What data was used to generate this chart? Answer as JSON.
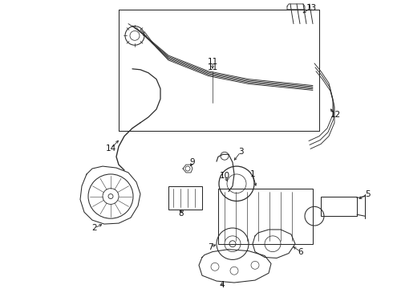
{
  "bg_color": "#ffffff",
  "line_color": "#2a2a2a",
  "text_color": "#111111",
  "figsize": [
    4.9,
    3.6
  ],
  "dpi": 100,
  "label_fs": 7.5,
  "lw": 0.75
}
